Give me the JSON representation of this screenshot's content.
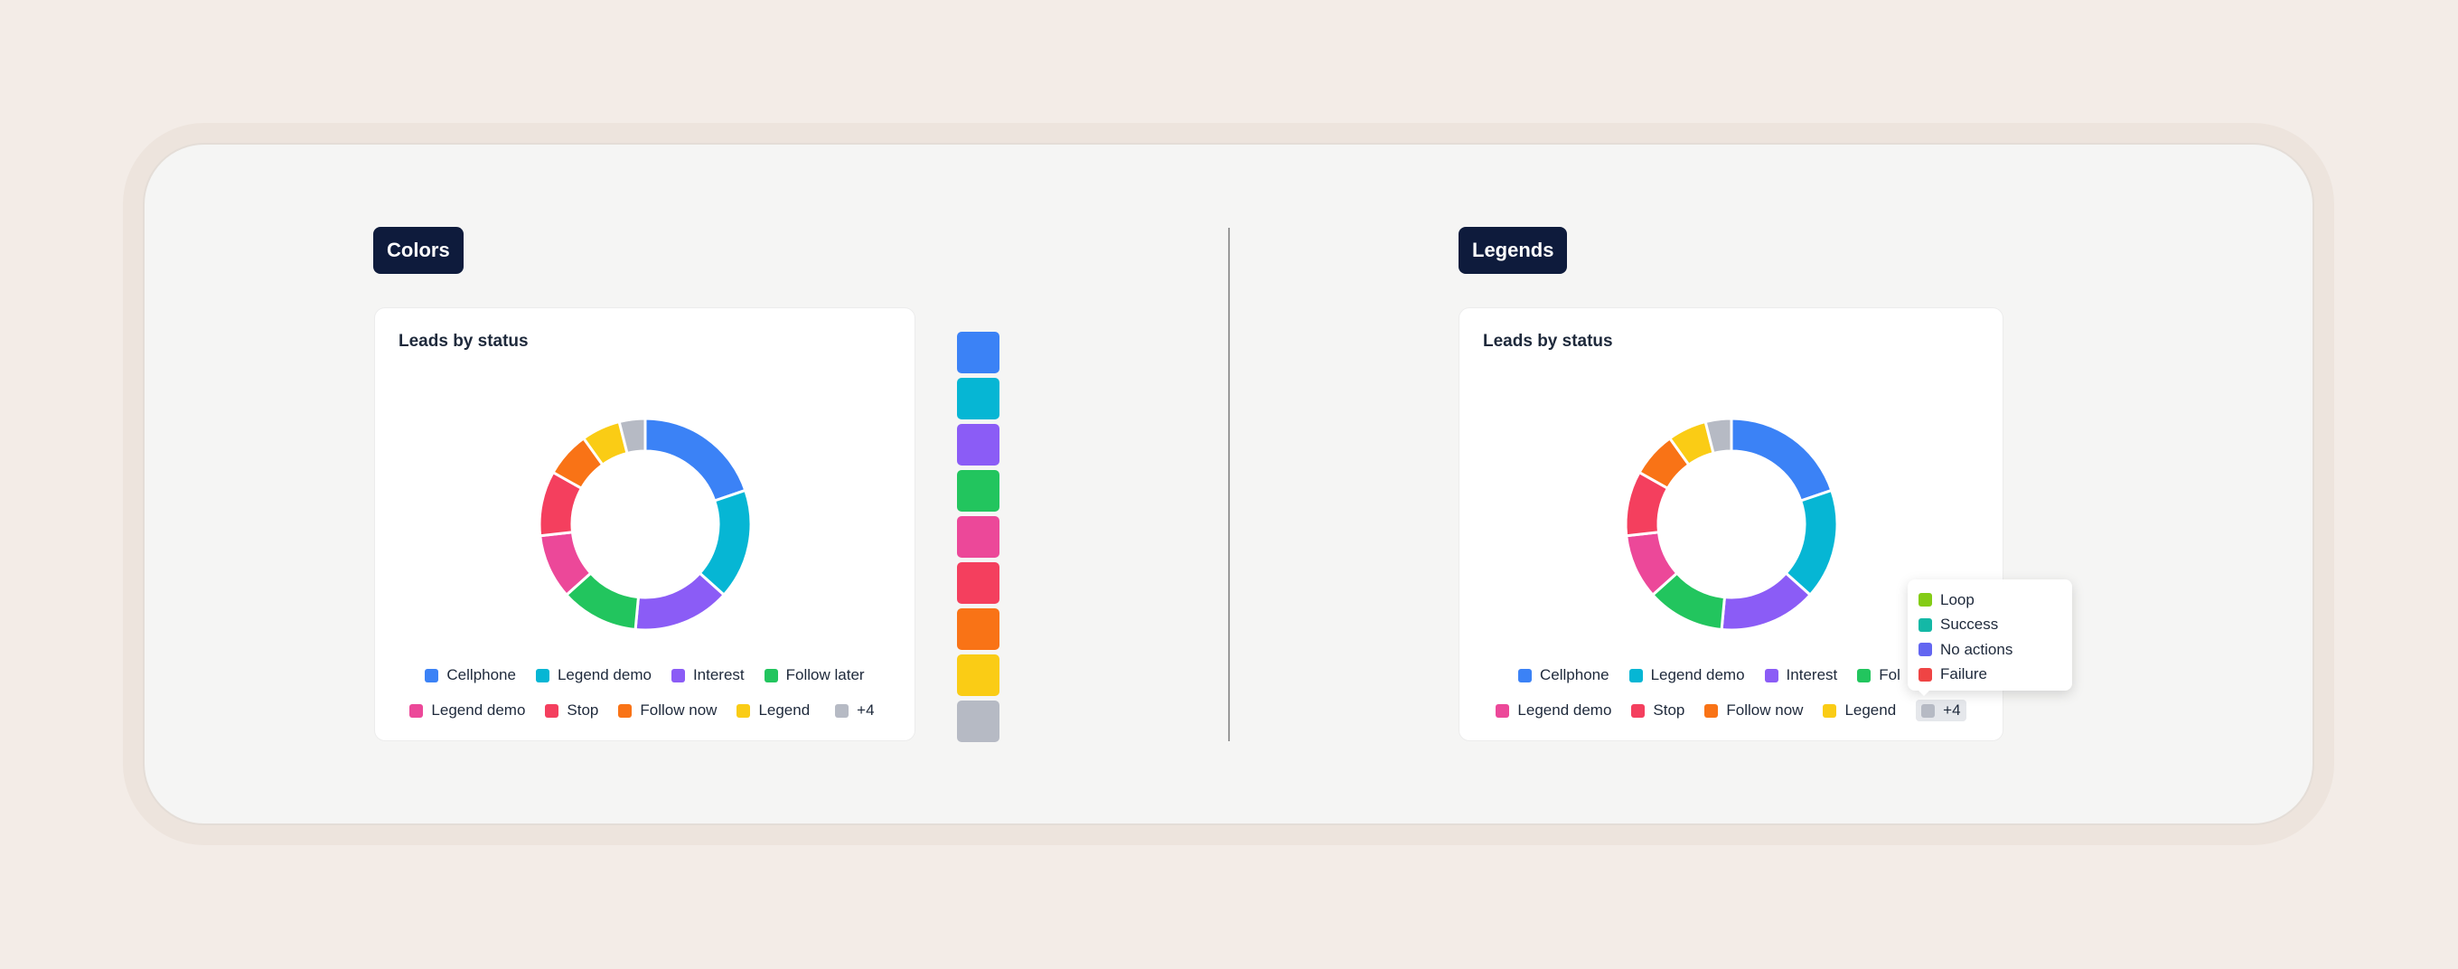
{
  "sections": {
    "left_label": "Colors",
    "right_label": "Legends"
  },
  "palette": [
    "#3b82f6",
    "#06b6d4",
    "#8b5cf6",
    "#22c55e",
    "#ec4899",
    "#f43f5e",
    "#f97316",
    "#facc15",
    "#b6bac4"
  ],
  "chart_data": [
    {
      "type": "pie",
      "title": "Leads by status",
      "categories": [
        "Cellphone",
        "Legend demo",
        "Interest",
        "Follow later",
        "Legend demo",
        "Stop",
        "Follow now",
        "Legend",
        "+4"
      ],
      "values": [
        20,
        17,
        15,
        12,
        10,
        10,
        7,
        6,
        4
      ],
      "colors": [
        "#3b82f6",
        "#06b6d4",
        "#8b5cf6",
        "#22c55e",
        "#ec4899",
        "#f43f5e",
        "#f97316",
        "#facc15",
        "#b6bac4"
      ],
      "legend": "bottom"
    },
    {
      "type": "pie",
      "title": "Leads by status",
      "categories": [
        "Cellphone",
        "Legend demo",
        "Interest",
        "Follow later",
        "Legend demo",
        "Stop",
        "Follow now",
        "Legend",
        "+4"
      ],
      "values": [
        20,
        17,
        15,
        12,
        10,
        10,
        7,
        6,
        4
      ],
      "colors": [
        "#3b82f6",
        "#06b6d4",
        "#8b5cf6",
        "#22c55e",
        "#ec4899",
        "#f43f5e",
        "#f97316",
        "#facc15",
        "#b6bac4"
      ],
      "legend": "bottom",
      "tooltip": {
        "items": [
          {
            "label": "Loop",
            "color": "#84cc16"
          },
          {
            "label": "Success",
            "color": "#14b8a6"
          },
          {
            "label": "No actions",
            "color": "#6366f1"
          },
          {
            "label": "Failure",
            "color": "#ef4444"
          }
        ]
      }
    }
  ]
}
